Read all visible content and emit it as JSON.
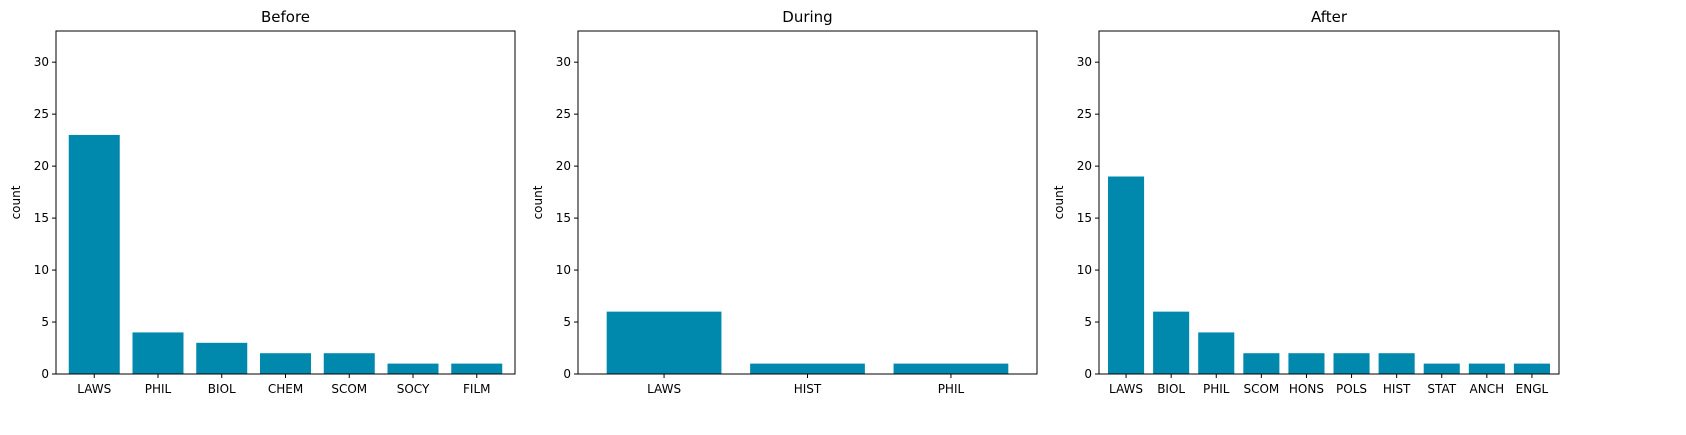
{
  "chart_data": [
    {
      "type": "bar",
      "title": "Before",
      "xlabel": "",
      "ylabel": "count",
      "ylim": [
        0,
        33
      ],
      "yticks": [
        0,
        5,
        10,
        15,
        20,
        25,
        30
      ],
      "categories": [
        "LAWS",
        "PHIL",
        "BIOL",
        "CHEM",
        "SCOM",
        "SOCY",
        "FILM"
      ],
      "values": [
        23,
        4,
        3,
        2,
        2,
        1,
        1
      ],
      "color": "#0088ad",
      "grid": false
    },
    {
      "type": "bar",
      "title": "During",
      "xlabel": "",
      "ylabel": "count",
      "ylim": [
        0,
        33
      ],
      "yticks": [
        0,
        5,
        10,
        15,
        20,
        25,
        30
      ],
      "categories": [
        "LAWS",
        "HIST",
        "PHIL"
      ],
      "values": [
        6,
        1,
        1
      ],
      "color": "#0088ad",
      "grid": false
    },
    {
      "type": "bar",
      "title": "After",
      "xlabel": "",
      "ylabel": "count",
      "ylim": [
        0,
        33
      ],
      "yticks": [
        0,
        5,
        10,
        15,
        20,
        25,
        30
      ],
      "categories": [
        "LAWS",
        "BIOL",
        "PHIL",
        "SCOM",
        "HONS",
        "POLS",
        "HIST",
        "STAT",
        "ANCH",
        "ENGL"
      ],
      "values": [
        19,
        6,
        4,
        2,
        2,
        2,
        2,
        1,
        1,
        1
      ],
      "color": "#0088ad",
      "grid": false
    }
  ]
}
